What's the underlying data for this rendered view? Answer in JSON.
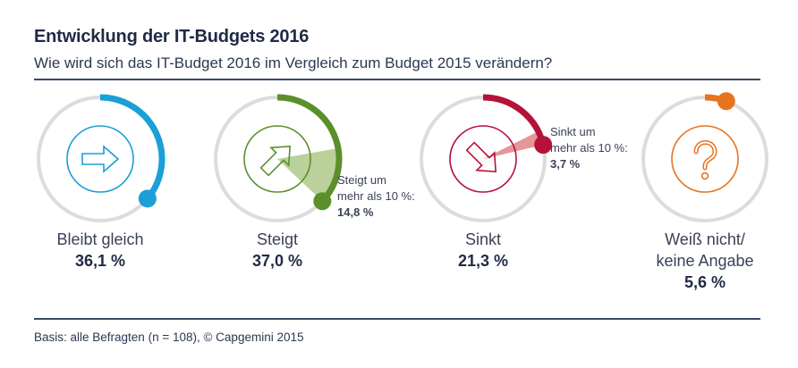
{
  "header": {
    "title": "Entwicklung der IT-Budgets 2016",
    "subtitle": "Wie wird sich das IT-Budget 2016 im Vergleich zum Budget 2015 verändern?"
  },
  "footer": {
    "text": "Basis: alle Befragten (n = 108), © Capgemini 2015"
  },
  "chart_data": {
    "type": "pie",
    "title": "Entwicklung der IT-Budgets 2016",
    "subtitle": "Wie wird sich das IT-Budget 2016 im Vergleich zum Budget 2015 verändern?",
    "unit": "%",
    "track_color": "#dcdcdc",
    "items": [
      {
        "category_lines": [
          "Bleibt gleich"
        ],
        "value": 36.1,
        "value_label": "36,1 %",
        "color": "#1a9fd6",
        "icon": "arrow-right-icon",
        "sub": null
      },
      {
        "category_lines": [
          "Steigt"
        ],
        "value": 37.0,
        "value_label": "37,0 %",
        "color": "#5b8f2a",
        "sub_color": "#b7cf96",
        "icon": "arrow-up-right-icon",
        "sub": {
          "label_lines": [
            "Steigt um",
            "mehr als 10 %:"
          ],
          "value": 14.8,
          "value_label": "14,8 %"
        }
      },
      {
        "category_lines": [
          "Sinkt"
        ],
        "value": 21.3,
        "value_label": "21,3 %",
        "color": "#b5123a",
        "sub_color": "#e58f92",
        "icon": "arrow-down-right-icon",
        "sub": {
          "label_lines": [
            "Sinkt um",
            "mehr als 10 %:"
          ],
          "value": 3.7,
          "value_label": "3,7 %"
        }
      },
      {
        "category_lines": [
          "Weiß nicht/",
          "keine Angabe"
        ],
        "value": 5.6,
        "value_label": "5,6 %",
        "color": "#e8731e",
        "icon": "question-mark-icon",
        "sub": null
      }
    ]
  }
}
